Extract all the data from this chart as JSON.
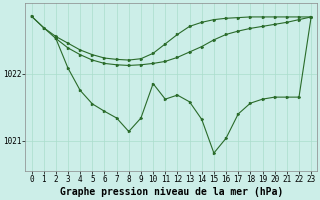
{
  "background_color": "#cceee8",
  "grid_color": "#aaddcc",
  "line_color": "#2a6b2a",
  "title": "Graphe pression niveau de la mer (hPa)",
  "xlim": [
    -0.5,
    23.5
  ],
  "ylim": [
    1020.55,
    1023.05
  ],
  "yticks": [
    1021,
    1022
  ],
  "xticks": [
    0,
    1,
    2,
    3,
    4,
    5,
    6,
    7,
    8,
    9,
    10,
    11,
    12,
    13,
    14,
    15,
    16,
    17,
    18,
    19,
    20,
    21,
    22,
    23
  ],
  "line1_x": [
    0,
    1,
    2,
    3,
    4,
    5,
    6,
    7,
    8,
    9,
    10,
    11,
    12,
    13,
    14,
    15,
    16,
    17,
    18,
    19,
    20,
    21,
    22,
    23
  ],
  "line1_y": [
    1022.85,
    1022.68,
    1022.52,
    1022.38,
    1022.28,
    1022.2,
    1022.15,
    1022.13,
    1022.12,
    1022.13,
    1022.15,
    1022.18,
    1022.24,
    1022.32,
    1022.4,
    1022.5,
    1022.58,
    1022.63,
    1022.67,
    1022.7,
    1022.73,
    1022.76,
    1022.8,
    1022.84
  ],
  "line2_x": [
    0,
    1,
    2,
    3,
    4,
    5,
    6,
    7,
    8,
    9,
    10,
    11,
    12,
    13,
    14,
    15,
    16,
    17,
    18,
    19,
    20,
    21,
    22,
    23
  ],
  "line2_y": [
    1022.85,
    1022.68,
    1022.55,
    1022.45,
    1022.35,
    1022.28,
    1022.23,
    1022.21,
    1022.2,
    1022.22,
    1022.3,
    1022.44,
    1022.58,
    1022.7,
    1022.76,
    1022.8,
    1022.82,
    1022.83,
    1022.84,
    1022.84,
    1022.84,
    1022.84,
    1022.84,
    1022.84
  ],
  "line3_x": [
    2,
    3,
    4,
    5,
    6,
    7,
    8,
    9,
    10,
    11,
    12,
    13,
    14,
    15,
    16,
    17,
    18,
    19,
    20,
    21,
    22,
    23
  ],
  "line3_y": [
    1022.52,
    1022.08,
    1021.75,
    1021.55,
    1021.44,
    1021.34,
    1021.14,
    1021.34,
    1021.85,
    1021.62,
    1021.68,
    1021.58,
    1021.32,
    1020.82,
    1021.04,
    1021.4,
    1021.56,
    1021.62,
    1021.65,
    1021.65,
    1021.65,
    1022.84
  ],
  "title_fontsize": 7,
  "tick_fontsize": 5.5,
  "markersize": 1.5,
  "linewidth": 0.8
}
